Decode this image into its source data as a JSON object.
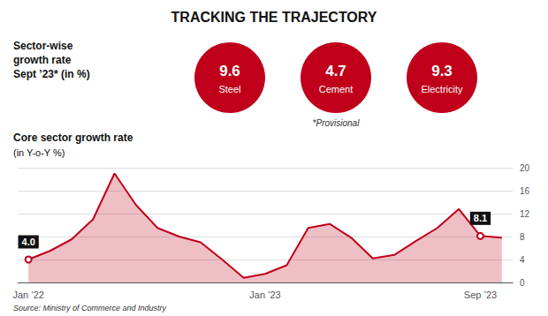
{
  "chart_data": {
    "type": "line",
    "title": "TRACKING THE TRAJECTORY",
    "categories": [
      "Jan ’22",
      null,
      null,
      null,
      null,
      null,
      null,
      null,
      null,
      null,
      null,
      "Jan ’23",
      null,
      null,
      null,
      null,
      null,
      null,
      null,
      null,
      null,
      "Sep ’23",
      null
    ],
    "values": [
      4.0,
      5.5,
      7.5,
      11.0,
      19.0,
      13.5,
      9.5,
      8.0,
      7.0,
      4.0,
      0.8,
      1.5,
      3.0,
      9.5,
      10.2,
      7.8,
      4.2,
      4.8,
      7.2,
      9.5,
      12.8,
      8.1,
      7.8
    ],
    "value_labels": [
      "4.0",
      null,
      null,
      null,
      null,
      null,
      null,
      null,
      null,
      null,
      null,
      null,
      null,
      null,
      null,
      null,
      null,
      null,
      null,
      null,
      null,
      "8.1",
      null
    ],
    "color": "#c0001a",
    "ylim": [
      0,
      20
    ],
    "yticks": [
      0,
      4,
      8,
      12,
      16,
      20
    ],
    "grid": true,
    "annotations": [
      {
        "text": "Sector-wise\ngrowth rate\nSept ’23* (in %)"
      },
      {
        "text": "Steel",
        "value": 9.6
      },
      {
        "text": "Cement",
        "value": 4.7
      },
      {
        "text": "Electricity",
        "value": 9.3
      },
      {
        "text": "*Provisional"
      },
      {
        "text": "Core sector growth rate"
      },
      {
        "text": "(in Y-o-Y %)"
      },
      {
        "text": "Source: Ministry of Commerce and Industry"
      }
    ]
  }
}
